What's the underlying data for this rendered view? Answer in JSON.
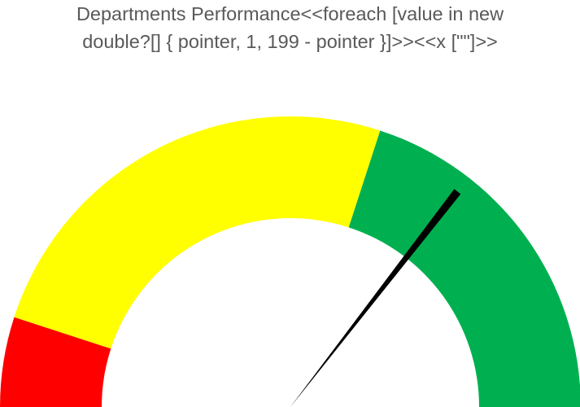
{
  "chart_data": {
    "type": "gauge",
    "title_lines": [
      "Departments Performance<<foreach [value in new",
      "double?[] { pointer, 1, 199 - pointer }]>><<x [\"\"]>>"
    ],
    "scale": {
      "min": 0,
      "max": 100
    },
    "bands": [
      {
        "name": "",
        "from": 0,
        "to": 10,
        "color": "#FF0000"
      },
      {
        "name": "",
        "from": 10,
        "to": 60,
        "color": "#FFFF00"
      },
      {
        "name": "",
        "from": 60,
        "to": 100,
        "color": "#00B050"
      }
    ],
    "pointer": {
      "value": 71,
      "color": "#000000"
    }
  }
}
